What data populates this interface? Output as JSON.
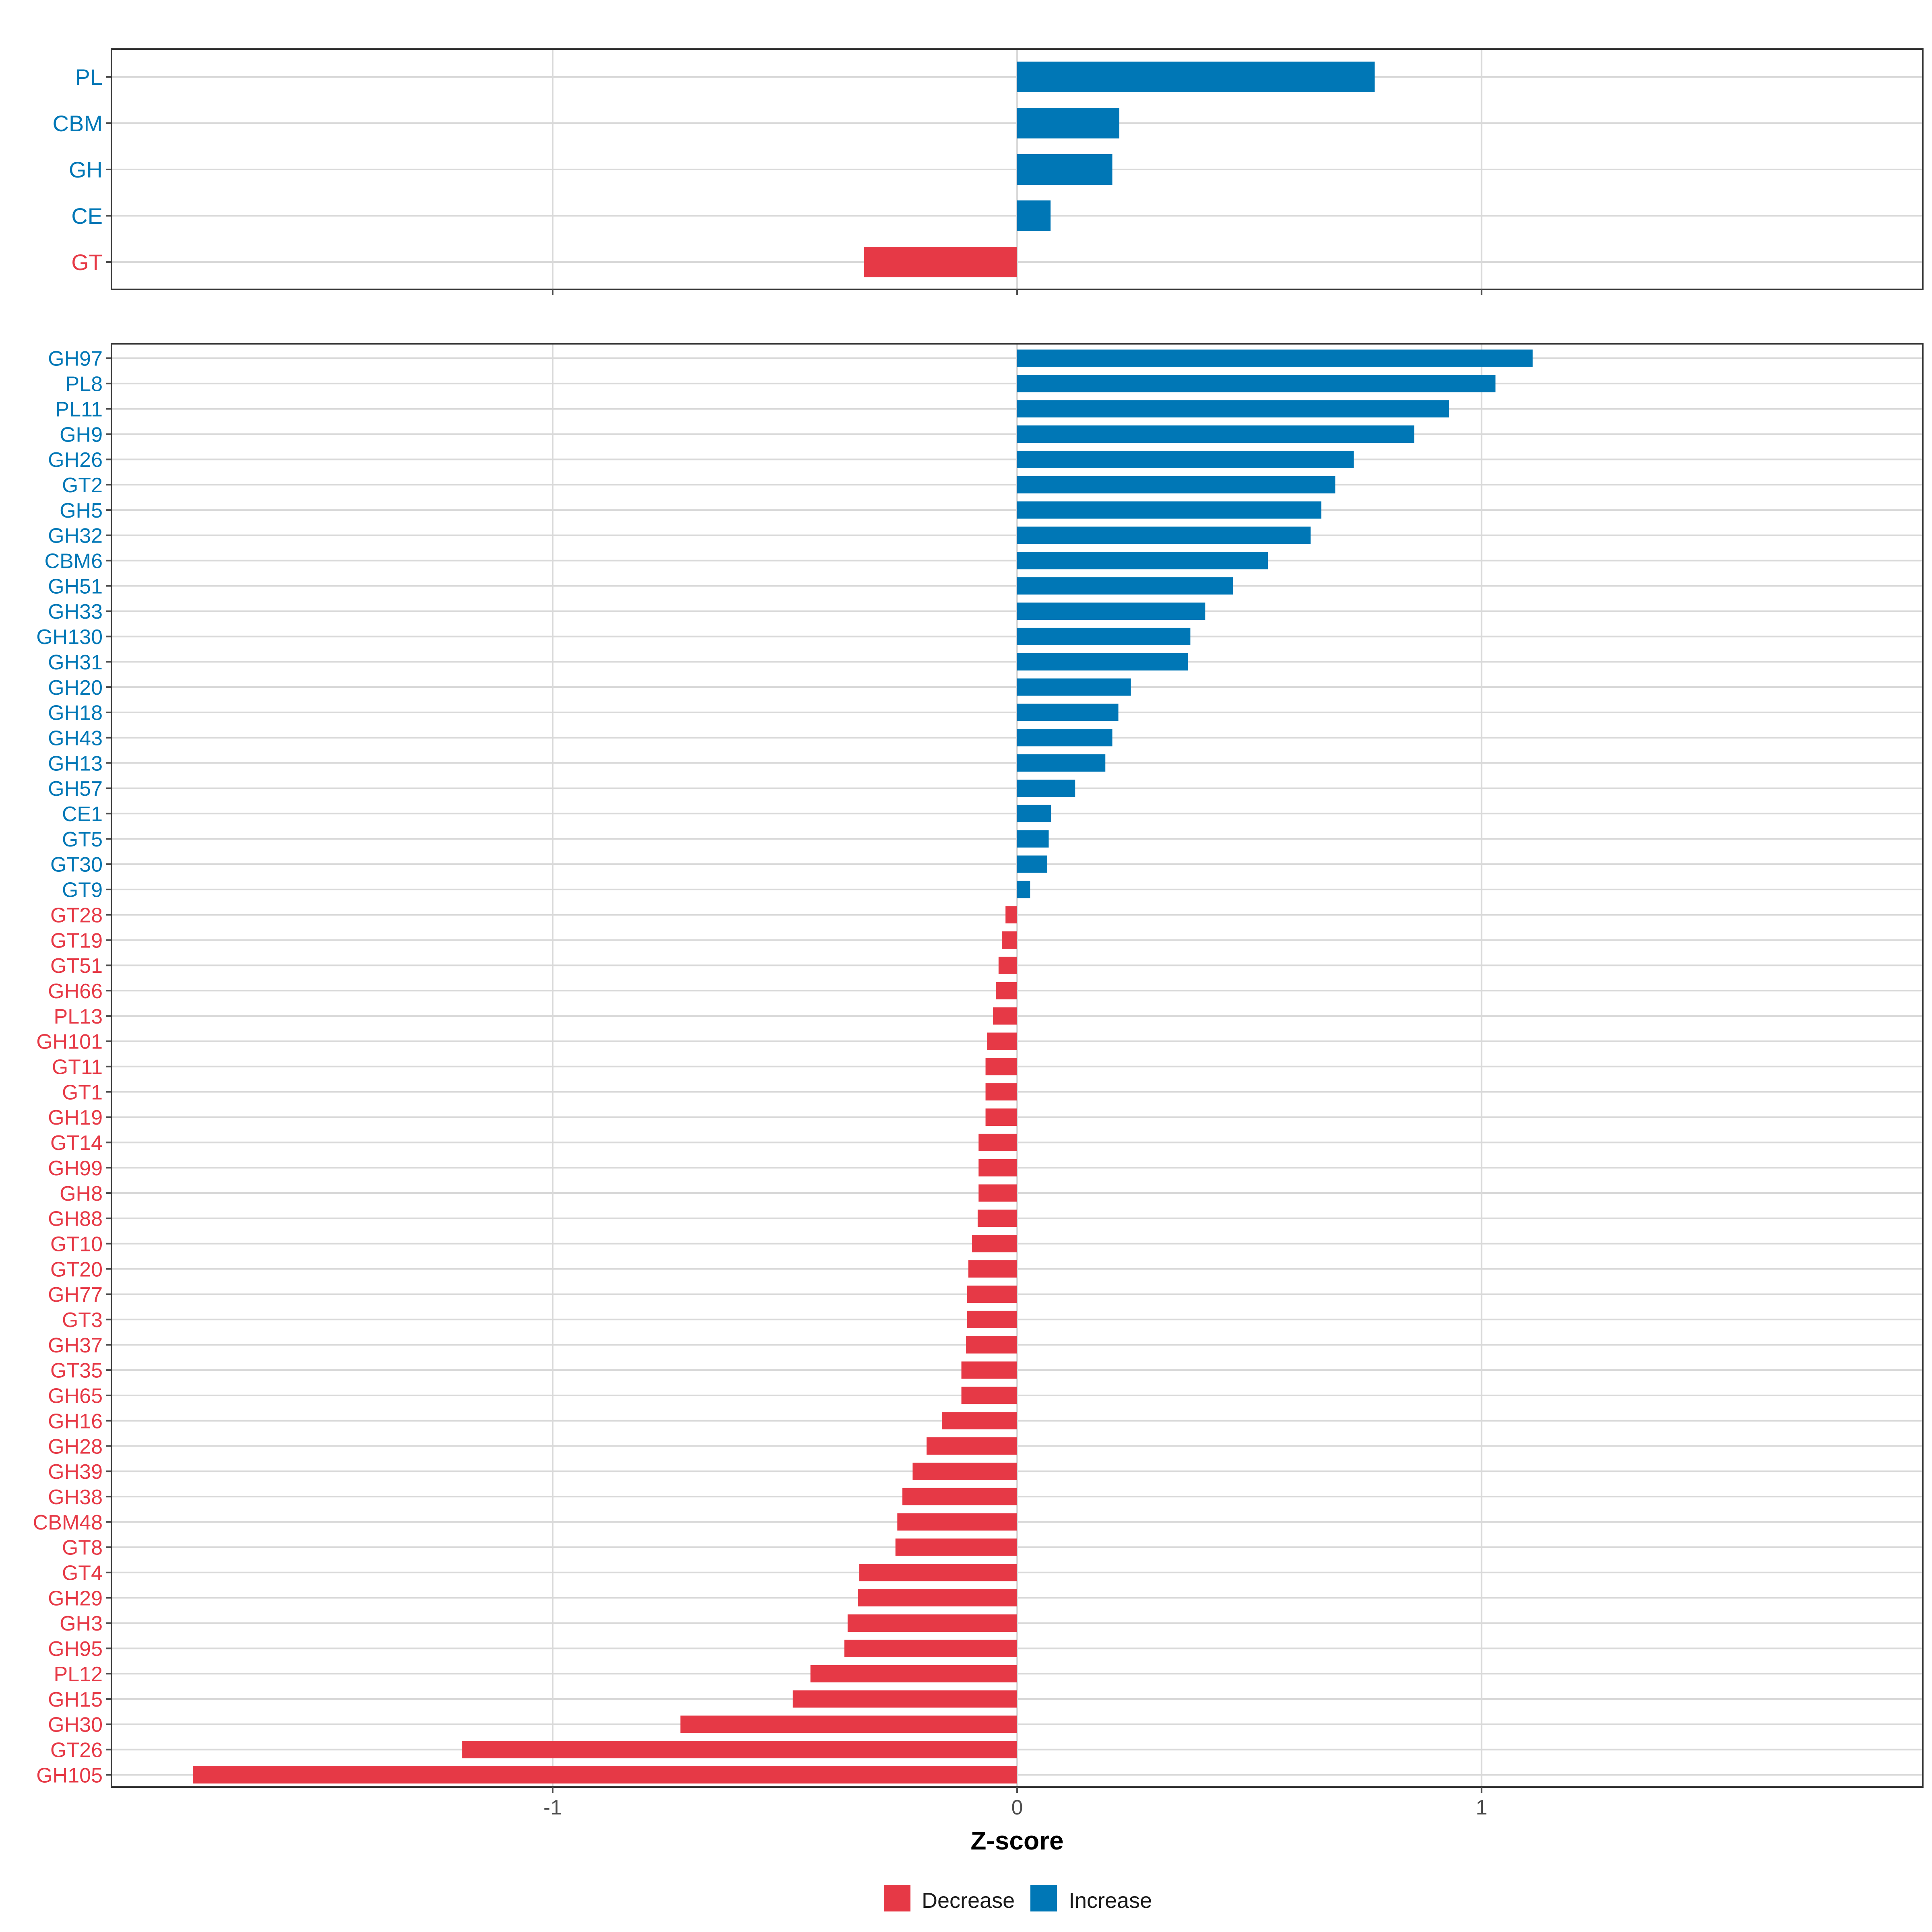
{
  "colors": {
    "decrease": "#e63946",
    "increase": "#0077b6",
    "grid": "#d9d9d9",
    "panel_border": "#333333",
    "axis_text": "#4d4d4d",
    "title_text": "#000000"
  },
  "chart_data": [
    {
      "type": "bar",
      "orientation": "horizontal",
      "panel": "class-level",
      "categories": [
        "PL",
        "CBM",
        "GH",
        "CE",
        "GT"
      ],
      "values": [
        0.77,
        0.22,
        0.205,
        0.072,
        -0.33
      ],
      "xlim": [
        -1.95,
        1.95
      ],
      "xticks": [
        -1,
        0,
        1
      ],
      "grid": true
    },
    {
      "type": "bar",
      "orientation": "horizontal",
      "panel": "family-level",
      "categories": [
        "GH97",
        "PL8",
        "PL11",
        "GH9",
        "GH26",
        "GT2",
        "GH5",
        "GH32",
        "CBM6",
        "GH51",
        "GH33",
        "GH130",
        "GH31",
        "GH20",
        "GH18",
        "GH43",
        "GH13",
        "GH57",
        "CE1",
        "GT5",
        "GT30",
        "GT9",
        "GT28",
        "GT19",
        "GT51",
        "GH66",
        "PL13",
        "GH101",
        "GT11",
        "GT1",
        "GH19",
        "GT14",
        "GH99",
        "GH8",
        "GH88",
        "GT10",
        "GT20",
        "GH77",
        "GT3",
        "GH37",
        "GT35",
        "GH65",
        "GH16",
        "GH28",
        "GH39",
        "GH38",
        "CBM48",
        "GT8",
        "GT4",
        "GH29",
        "GH3",
        "GH95",
        "PL12",
        "GH15",
        "GH30",
        "GT26",
        "GH105"
      ],
      "values": [
        1.11,
        1.03,
        0.93,
        0.855,
        0.725,
        0.685,
        0.655,
        0.632,
        0.54,
        0.465,
        0.405,
        0.373,
        0.368,
        0.245,
        0.218,
        0.205,
        0.19,
        0.125,
        0.073,
        0.068,
        0.065,
        0.028,
        -0.025,
        -0.033,
        -0.04,
        -0.045,
        -0.052,
        -0.065,
        -0.068,
        -0.068,
        -0.068,
        -0.083,
        -0.083,
        -0.083,
        -0.085,
        -0.097,
        -0.105,
        -0.108,
        -0.108,
        -0.11,
        -0.12,
        -0.12,
        -0.162,
        -0.195,
        -0.225,
        -0.247,
        -0.258,
        -0.262,
        -0.34,
        -0.343,
        -0.365,
        -0.372,
        -0.445,
        -0.483,
        -0.725,
        -1.195,
        -1.775
      ],
      "xlim": [
        -1.95,
        1.95
      ],
      "xticks": [
        -1,
        0,
        1
      ],
      "xlabel": "Z-score",
      "grid": true
    }
  ],
  "x_tick_labels": [
    "-1",
    "0",
    "1"
  ],
  "axis": {
    "xlabel": "Z-score"
  },
  "legend": {
    "position": "bottom",
    "items": [
      {
        "label": "Decrease",
        "key": "decrease"
      },
      {
        "label": "Increase",
        "key": "increase"
      }
    ]
  }
}
